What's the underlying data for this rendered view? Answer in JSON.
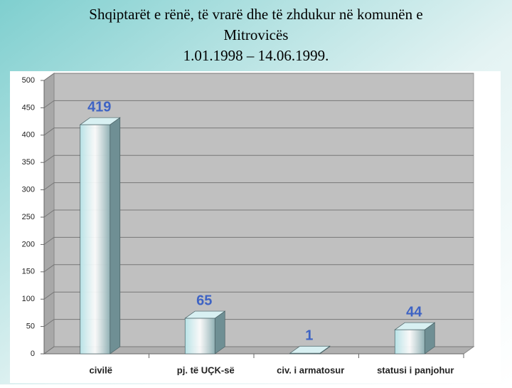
{
  "chart_data": {
    "type": "bar3d",
    "title": [
      "Shqiptarët e rënë, të vrarë dhe të zhdukur në komunën e",
      "Mitrovicës",
      "1.01.1998 – 14.06.1999."
    ],
    "categories": [
      "civilë",
      "pj. të UÇK-së",
      "civ. i armatosur",
      "statusi i panjohur"
    ],
    "values": [
      419,
      65,
      1,
      44
    ],
    "color": "#b8e2e6",
    "label_color": "#3e63c4",
    "ylim": [
      0,
      500
    ],
    "yticks": [
      0,
      50,
      100,
      150,
      200,
      250,
      300,
      350,
      400,
      450,
      500
    ],
    "grid": true
  }
}
